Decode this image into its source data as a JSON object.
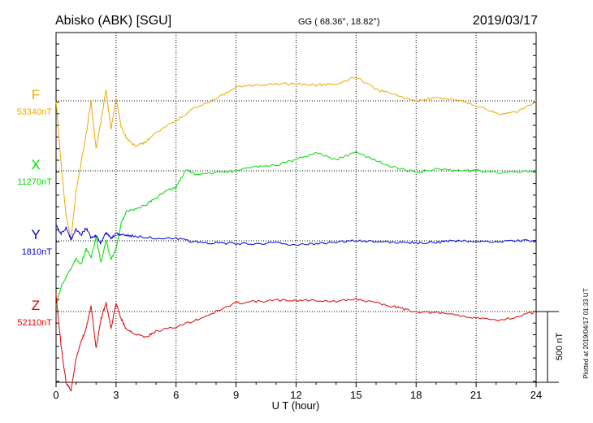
{
  "header": {
    "station": "Abisko (ABK)  [SGU]",
    "coords": "GG ( 68.36°,  18.82°)",
    "date": "2019/03/17"
  },
  "footer": {
    "plotted_at": "Plotted at 2019/04/17 01:33 UT"
  },
  "colors": {
    "F": "#f0a800",
    "X": "#00dd00",
    "Y": "#0000e0",
    "Z": "#e00000"
  },
  "chart_data": {
    "type": "line",
    "xlabel": "U T (hour)",
    "xlim": [
      0,
      24
    ],
    "xticks": [
      "0",
      "3",
      "6",
      "9",
      "12",
      "15",
      "18",
      "21",
      "24"
    ],
    "scale_bar": "500 nT",
    "series": [
      {
        "name": "F",
        "baseline_label": "53340nT",
        "baseline": 53340,
        "x": [
          0,
          0.25,
          0.5,
          0.75,
          1,
          1.25,
          1.5,
          1.75,
          2,
          2.25,
          2.5,
          2.75,
          3,
          3.25,
          3.5,
          4,
          4.5,
          5,
          6,
          7,
          8,
          9,
          10,
          11,
          12,
          13,
          14,
          15,
          16,
          17,
          18,
          19,
          20,
          21,
          22,
          23,
          24
        ],
        "values": [
          53340,
          52900,
          52530,
          52360,
          52700,
          52900,
          53100,
          53340,
          53000,
          53200,
          53420,
          53140,
          53360,
          53160,
          53080,
          53020,
          53050,
          53120,
          53200,
          53300,
          53350,
          53440,
          53450,
          53460,
          53460,
          53450,
          53460,
          53510,
          53420,
          53380,
          53340,
          53360,
          53350,
          53310,
          53250,
          53260,
          53340
        ]
      },
      {
        "name": "X",
        "baseline_label": "11270nT",
        "baseline": 11270,
        "x": [
          0,
          0.25,
          0.5,
          0.75,
          1,
          1.25,
          1.5,
          1.75,
          2,
          2.25,
          2.5,
          2.75,
          3,
          3.25,
          3.5,
          4,
          4.5,
          5,
          5.5,
          6,
          6.5,
          7,
          8,
          9,
          10,
          11,
          12,
          13,
          14,
          15,
          16,
          17,
          18,
          19,
          20,
          21,
          22,
          23,
          24
        ],
        "values": [
          10320,
          10450,
          10520,
          10580,
          10650,
          10610,
          10720,
          10660,
          10800,
          10620,
          10780,
          10640,
          10720,
          10900,
          10980,
          11000,
          11030,
          11080,
          11130,
          11150,
          11280,
          11240,
          11260,
          11270,
          11300,
          11310,
          11350,
          11400,
          11350,
          11400,
          11340,
          11290,
          11260,
          11280,
          11270,
          11270,
          11260,
          11260,
          11270
        ]
      },
      {
        "name": "Y",
        "baseline_label": "1810nT",
        "baseline": 1810,
        "x": [
          0,
          0.25,
          0.5,
          0.75,
          1,
          1.25,
          1.5,
          1.75,
          2,
          2.25,
          2.5,
          2.75,
          3,
          3.5,
          4,
          5,
          6,
          7,
          8,
          9,
          10,
          11,
          12,
          13,
          14,
          15,
          16,
          17,
          18,
          19,
          20,
          21,
          22,
          23,
          24
        ],
        "values": [
          1920,
          1860,
          1900,
          1820,
          1890,
          1850,
          1900,
          1830,
          1850,
          1790,
          1870,
          1830,
          1860,
          1850,
          1840,
          1830,
          1825,
          1800,
          1795,
          1790,
          1790,
          1795,
          1780,
          1790,
          1800,
          1815,
          1800,
          1800,
          1795,
          1800,
          1810,
          1805,
          1800,
          1810,
          1810
        ]
      },
      {
        "name": "Z",
        "baseline_label": "52110nT",
        "baseline": 52110,
        "x": [
          0,
          0.25,
          0.5,
          0.75,
          1,
          1.25,
          1.5,
          1.75,
          2,
          2.25,
          2.5,
          2.75,
          3,
          3.25,
          3.5,
          4,
          4.5,
          5,
          6,
          7,
          8,
          9,
          10,
          11,
          12,
          13,
          14,
          15,
          16,
          17,
          18,
          19,
          20,
          21,
          22,
          23,
          24
        ],
        "values": [
          52230,
          51870,
          51610,
          51550,
          51780,
          51900,
          51990,
          52150,
          51850,
          52060,
          52170,
          51990,
          52170,
          52060,
          51990,
          51950,
          51930,
          51970,
          52000,
          52050,
          52110,
          52170,
          52180,
          52190,
          52190,
          52190,
          52180,
          52200,
          52170,
          52140,
          52110,
          52100,
          52090,
          52060,
          52050,
          52070,
          52110
        ]
      }
    ]
  }
}
